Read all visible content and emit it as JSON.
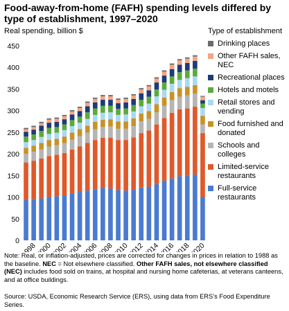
{
  "chart_data": {
    "type": "stacked-bar",
    "title": "Food-away-from-home (FAFH) spending levels differed by type of establishment, 1997–2020",
    "ylabel": "Real spending, billion $",
    "legend_title": "Type of establishment",
    "categories": [
      null,
      "1998",
      null,
      "2000",
      null,
      "2002",
      null,
      "2004",
      null,
      "2006",
      null,
      "2008",
      null,
      "2010",
      null,
      "2012",
      null,
      "2014",
      null,
      "2016",
      null,
      "2018",
      null,
      "2020"
    ],
    "ylim": [
      0,
      450
    ],
    "yticks": [
      0,
      50,
      100,
      150,
      200,
      250,
      300,
      350,
      400,
      450
    ],
    "grid": false,
    "series": [
      {
        "name": "Full-service restaurants",
        "color": "#4a7bd0",
        "values": [
          93,
          95,
          97,
          100,
          102,
          104,
          108,
          112,
          115,
          118,
          121,
          120,
          116,
          115,
          118,
          122,
          124,
          130,
          138,
          143,
          148,
          150,
          152,
          100
        ]
      },
      {
        "name": "Limited-service restaurants",
        "color": "#e0592a",
        "values": [
          87,
          89,
          92,
          95,
          96,
          98,
          102,
          105,
          110,
          114,
          116,
          117,
          116,
          117,
          120,
          126,
          130,
          138,
          145,
          152,
          155,
          155,
          157,
          148
        ]
      },
      {
        "name": "Schools and colleges",
        "color": "#b5b5b5",
        "values": [
          20,
          21,
          21,
          22,
          22,
          23,
          23,
          24,
          24,
          25,
          25,
          26,
          26,
          26,
          26,
          27,
          27,
          28,
          28,
          29,
          29,
          30,
          30,
          20
        ]
      },
      {
        "name": "Food furnished and donated",
        "color": "#c8922a",
        "values": [
          14,
          14,
          15,
          15,
          15,
          15,
          16,
          16,
          16,
          17,
          17,
          17,
          17,
          17,
          18,
          18,
          18,
          19,
          19,
          19,
          20,
          20,
          20,
          20
        ]
      },
      {
        "name": "Retail stores and vending",
        "color": "#a9d9f2",
        "values": [
          13,
          13,
          14,
          14,
          14,
          15,
          15,
          15,
          16,
          16,
          16,
          16,
          15,
          16,
          16,
          17,
          17,
          18,
          18,
          19,
          19,
          20,
          20,
          18
        ]
      },
      {
        "name": "Hotels and motels",
        "color": "#5aab3c",
        "values": [
          13,
          13,
          14,
          14,
          13,
          13,
          14,
          14,
          15,
          15,
          16,
          15,
          14,
          14,
          15,
          15,
          16,
          16,
          17,
          17,
          18,
          18,
          18,
          10
        ]
      },
      {
        "name": "Recreational places",
        "color": "#1f3a7a",
        "values": [
          11,
          11,
          12,
          12,
          12,
          12,
          13,
          13,
          14,
          14,
          14,
          14,
          13,
          14,
          14,
          15,
          15,
          16,
          16,
          17,
          17,
          17,
          18,
          8
        ]
      },
      {
        "name": "Other FAFH sales, NEC",
        "color": "#f4a582",
        "values": [
          6,
          6,
          6,
          7,
          7,
          7,
          7,
          7,
          8,
          8,
          8,
          8,
          8,
          8,
          8,
          9,
          9,
          9,
          9,
          10,
          10,
          10,
          10,
          8
        ]
      },
      {
        "name": "Drinking places",
        "color": "#6b6b6b",
        "values": [
          3,
          3,
          3,
          3,
          3,
          3,
          3,
          3,
          3,
          3,
          3,
          3,
          3,
          3,
          3,
          3,
          3,
          3,
          3,
          3,
          3,
          3,
          3,
          2
        ]
      }
    ],
    "note": [
      "Note: Real, or inflation-adjusted, prices are corrected for changes in prices in relation to 1988 as the baseline. ",
      "NEC",
      " = Not elsewhere classified. ",
      "Other FAFH sales, not elsewhere classified (NEC)",
      " includes food sold on trains, at hospital and nursing home cafeterias, at veterans canteens, and at office buildings."
    ],
    "source": "Source: USDA, Economic Research Service (ERS), using data from ERS’s Food Expenditure Series."
  }
}
